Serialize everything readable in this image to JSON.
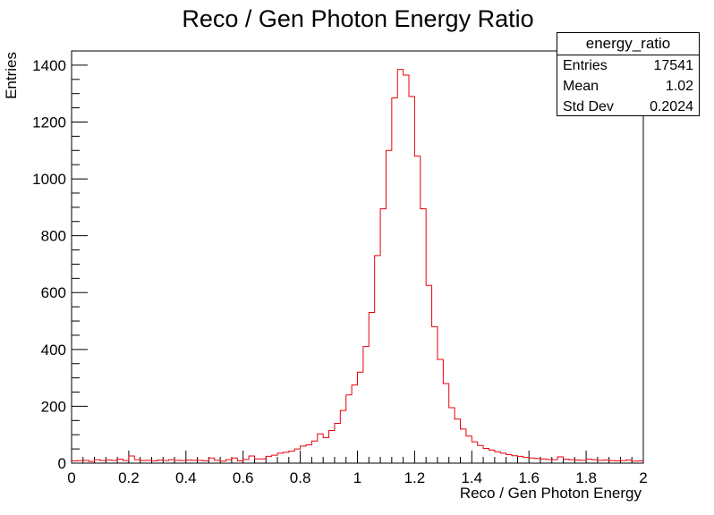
{
  "chart_data": {
    "type": "histogram",
    "title": "Reco / Gen Photon Energy Ratio",
    "xlabel": "Reco / Gen Photon Energy",
    "ylabel": "Entries",
    "xlim": [
      0,
      2
    ],
    "ylim": [
      0,
      1450
    ],
    "x_ticks": [
      0,
      0.2,
      0.4,
      0.6,
      0.8,
      1,
      1.2,
      1.4,
      1.6,
      1.8,
      2
    ],
    "y_ticks": [
      0,
      200,
      400,
      600,
      800,
      1000,
      1200,
      1400
    ],
    "bin_width": 0.02,
    "line_color": "#e8000b",
    "grid": false,
    "stats": {
      "name": "energy_ratio",
      "entries_label": "Entries",
      "entries": "17541",
      "mean_label": "Mean",
      "mean": "1.02",
      "stddev_label": "Std Dev",
      "stddev": "0.2024"
    },
    "bin_contents": [
      8,
      9,
      10,
      6,
      12,
      9,
      11,
      10,
      14,
      9,
      25,
      12,
      9,
      10,
      8,
      11,
      9,
      12,
      10,
      9,
      11,
      10,
      10,
      8,
      18,
      10,
      7,
      12,
      18,
      8,
      13,
      25,
      15,
      15,
      24,
      28,
      35,
      38,
      42,
      50,
      60,
      64,
      78,
      103,
      90,
      115,
      140,
      185,
      240,
      275,
      320,
      410,
      530,
      730,
      895,
      1100,
      1285,
      1385,
      1365,
      1290,
      1080,
      895,
      625,
      480,
      365,
      280,
      195,
      155,
      120,
      95,
      75,
      62,
      52,
      46,
      40,
      35,
      30,
      26,
      24,
      20,
      18,
      16,
      15,
      13,
      12,
      22,
      14,
      12,
      11,
      10,
      14,
      12,
      10,
      11,
      9,
      8,
      9,
      11,
      7,
      8
    ]
  }
}
